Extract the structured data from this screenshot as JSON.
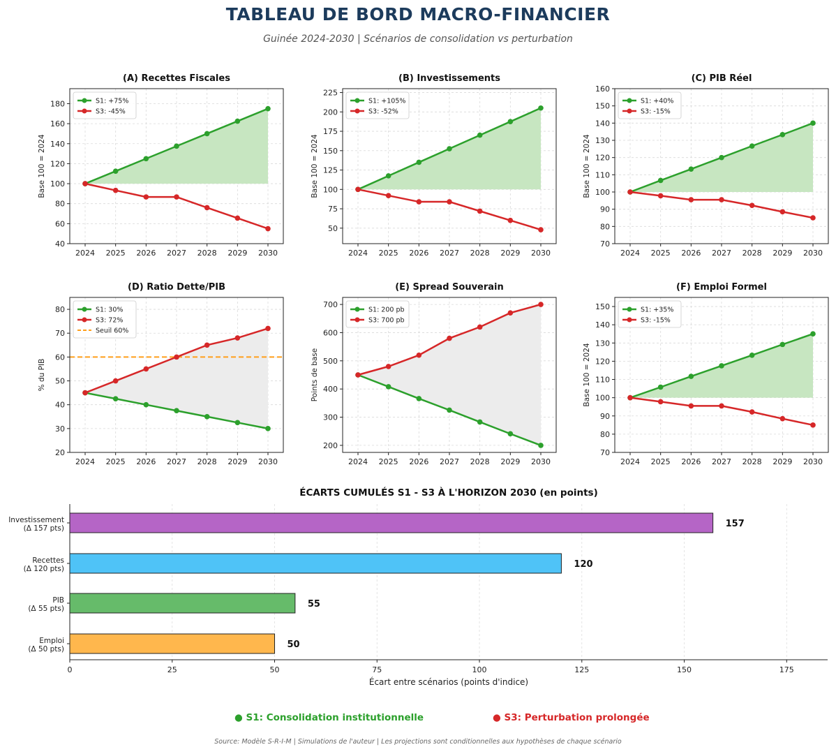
{
  "header": {
    "title": "TABLEAU DE BORD MACRO-FINANCIER",
    "subtitle": "Guinée 2024-2030 | Scénarios de consolidation vs perturbation"
  },
  "colors": {
    "s1": "#2ca02c",
    "s3": "#d62728",
    "threshold": "#ff9f1a",
    "fill_green": "#c7e6c1",
    "fill_grey": "#ececec"
  },
  "chart_data": [
    {
      "id": "A",
      "type": "line",
      "title": "(A) Recettes Fiscales",
      "ylabel": "Base 100 = 2024",
      "x": [
        "2024",
        "2025",
        "2026",
        "2027",
        "2028",
        "2029",
        "2030"
      ],
      "ylim": [
        40,
        195
      ],
      "yticks": [
        40,
        60,
        80,
        100,
        120,
        140,
        160,
        180
      ],
      "fill": "green",
      "series": [
        {
          "name": "S1: +75%",
          "values": [
            100,
            112.5,
            125,
            137.5,
            150,
            162.5,
            175
          ]
        },
        {
          "name": "S3: -45%",
          "values": [
            100,
            93.3,
            86.7,
            86.7,
            76,
            65.5,
            55
          ]
        }
      ]
    },
    {
      "id": "B",
      "type": "line",
      "title": "(B) Investissements",
      "ylabel": "Base 100 = 2024",
      "x": [
        "2024",
        "2025",
        "2026",
        "2027",
        "2028",
        "2029",
        "2030"
      ],
      "ylim": [
        30,
        230
      ],
      "yticks": [
        50,
        75,
        100,
        125,
        150,
        175,
        200,
        225
      ],
      "fill": "green",
      "series": [
        {
          "name": "S1: +105%",
          "values": [
            100,
            117.5,
            135,
            152.5,
            170,
            187.5,
            205
          ]
        },
        {
          "name": "S3: -52%",
          "values": [
            100,
            92,
            84,
            84,
            72,
            60,
            48
          ]
        }
      ]
    },
    {
      "id": "C",
      "type": "line",
      "title": "(C) PIB Réel",
      "ylabel": "Base 100 = 2024",
      "x": [
        "2024",
        "2025",
        "2026",
        "2027",
        "2028",
        "2029",
        "2030"
      ],
      "ylim": [
        70,
        160
      ],
      "yticks": [
        70,
        80,
        90,
        100,
        110,
        120,
        130,
        140,
        150,
        160
      ],
      "fill": "green",
      "series": [
        {
          "name": "S1: +40%",
          "values": [
            100,
            106.7,
            113.3,
            120,
            126.7,
            133.3,
            140
          ]
        },
        {
          "name": "S3: -15%",
          "values": [
            100,
            97.8,
            95.5,
            95.5,
            92.2,
            88.5,
            85
          ]
        }
      ]
    },
    {
      "id": "D",
      "type": "line",
      "title": "(D) Ratio Dette/PIB",
      "ylabel": "% du PIB",
      "x": [
        "2024",
        "2025",
        "2026",
        "2027",
        "2028",
        "2029",
        "2030"
      ],
      "ylim": [
        20,
        85
      ],
      "yticks": [
        20,
        30,
        40,
        50,
        60,
        70,
        80
      ],
      "fill": "grey",
      "threshold": {
        "label": "Seuil 60%",
        "value": 60
      },
      "series": [
        {
          "name": "S1: 30%",
          "values": [
            45,
            42.5,
            40,
            37.5,
            35,
            32.5,
            30
          ]
        },
        {
          "name": "S3: 72%",
          "values": [
            45,
            50,
            55,
            60,
            65,
            68,
            72
          ]
        }
      ]
    },
    {
      "id": "E",
      "type": "line",
      "title": "(E) Spread Souverain",
      "ylabel": "Points de base",
      "x": [
        "2024",
        "2025",
        "2026",
        "2027",
        "2028",
        "2029",
        "2030"
      ],
      "ylim": [
        175,
        725
      ],
      "yticks": [
        200,
        300,
        400,
        500,
        600,
        700
      ],
      "fill": "grey",
      "series": [
        {
          "name": "S1: 200 pb",
          "values": [
            450,
            408,
            366,
            325,
            283,
            241,
            200
          ]
        },
        {
          "name": "S3: 700 pb",
          "values": [
            450,
            480,
            520,
            580,
            620,
            670,
            700
          ]
        }
      ]
    },
    {
      "id": "F",
      "type": "line",
      "title": "(F) Emploi Formel",
      "ylabel": "Base 100 = 2024",
      "x": [
        "2024",
        "2025",
        "2026",
        "2027",
        "2028",
        "2029",
        "2030"
      ],
      "ylim": [
        70,
        155
      ],
      "yticks": [
        70,
        80,
        90,
        100,
        110,
        120,
        130,
        140,
        150
      ],
      "fill": "green",
      "series": [
        {
          "name": "S1: +35%",
          "values": [
            100,
            105.8,
            111.7,
            117.5,
            123.3,
            129.2,
            135
          ]
        },
        {
          "name": "S3: -15%",
          "values": [
            100,
            97.8,
            95.5,
            95.5,
            92.2,
            88.5,
            85
          ]
        }
      ]
    },
    {
      "id": "G",
      "type": "bar",
      "orientation": "horizontal",
      "title": "ÉCARTS CUMULÉS S1 - S3 À L'HORIZON 2030 (en points)",
      "xlabel": "Écart entre scénarios (points d'indice)",
      "xlim": [
        0,
        185
      ],
      "xticks": [
        0,
        25,
        50,
        75,
        100,
        125,
        150,
        175
      ],
      "categories": [
        {
          "line1": "Investissement",
          "line2": "(Δ 157 pts)",
          "value": 157,
          "label": "157",
          "color": "#b565c6"
        },
        {
          "line1": "Recettes",
          "line2": "(Δ 120 pts)",
          "value": 120,
          "label": "120",
          "color": "#4fc3f7"
        },
        {
          "line1": "PIB",
          "line2": "(Δ 55 pts)",
          "value": 55,
          "label": "55",
          "color": "#66bb6a"
        },
        {
          "line1": "Emploi",
          "line2": "(Δ 50 pts)",
          "value": 50,
          "label": "50",
          "color": "#ffb74d"
        }
      ]
    }
  ],
  "legend": {
    "s1": "● S1: Consolidation institutionnelle",
    "s3": "● S3: Perturbation prolongée"
  },
  "footer": "Source: Modèle S-R-I-M | Simulations de l'auteur | Les projections sont conditionnelles aux hypothèses de chaque scénario"
}
